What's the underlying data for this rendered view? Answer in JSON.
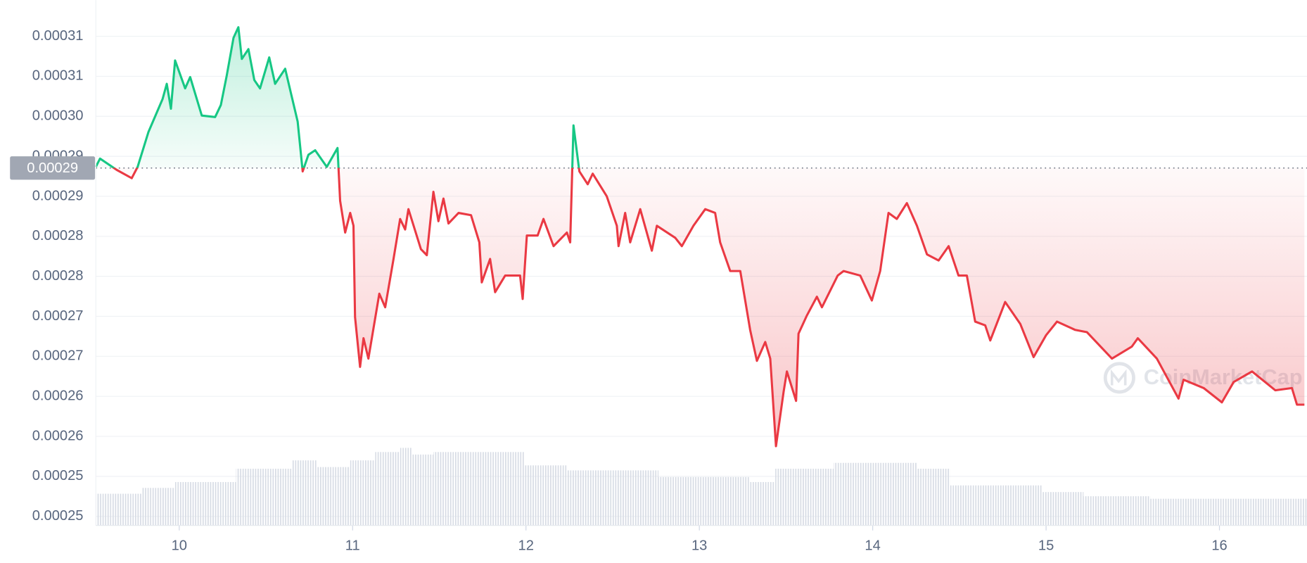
{
  "chart_data": {
    "type": "area-line",
    "x": [
      9.519,
      9.543,
      9.639,
      9.726,
      9.76,
      9.822,
      9.904,
      9.928,
      9.952,
      9.976,
      10.034,
      10.063,
      10.13,
      10.207,
      10.24,
      10.274,
      10.313,
      10.341,
      10.361,
      10.399,
      10.433,
      10.466,
      10.519,
      10.553,
      10.611,
      10.649,
      10.683,
      10.712,
      10.745,
      10.784,
      10.851,
      10.913,
      10.928,
      10.957,
      10.986,
      11.005,
      11.014,
      11.043,
      11.063,
      11.091,
      11.154,
      11.188,
      11.236,
      11.274,
      11.303,
      11.322,
      11.394,
      11.428,
      11.466,
      11.495,
      11.524,
      11.553,
      11.611,
      11.683,
      11.731,
      11.745,
      11.793,
      11.822,
      11.88,
      11.966,
      11.981,
      12.005,
      12.067,
      12.101,
      12.159,
      12.236,
      12.255,
      12.274,
      12.308,
      12.356,
      12.385,
      12.466,
      12.524,
      12.534,
      12.572,
      12.601,
      12.659,
      12.726,
      12.755,
      12.861,
      12.899,
      12.966,
      13.034,
      13.091,
      13.12,
      13.178,
      13.236,
      13.293,
      13.332,
      13.38,
      13.409,
      13.442,
      13.486,
      13.505,
      13.558,
      13.572,
      13.62,
      13.678,
      13.707,
      13.798,
      13.832,
      13.928,
      13.995,
      14.043,
      14.091,
      14.139,
      14.197,
      14.255,
      14.313,
      14.38,
      14.438,
      14.495,
      14.543,
      14.591,
      14.649,
      14.678,
      14.764,
      14.851,
      14.928,
      15.0,
      15.063,
      15.168,
      15.236,
      15.38,
      15.495,
      15.529,
      15.639,
      15.764,
      15.793,
      15.909,
      16.014,
      16.082,
      16.188,
      16.322,
      16.418,
      16.447,
      16.49
    ],
    "values": [
      0.0002933,
      0.0002944,
      0.0002929,
      0.0002918,
      0.0002933,
      0.0002979,
      0.0003023,
      0.0003043,
      0.000301,
      0.0003074,
      0.0003037,
      0.0003052,
      0.0003001,
      0.0002999,
      0.0003015,
      0.0003054,
      0.0003104,
      0.0003118,
      0.0003076,
      0.0003089,
      0.0003048,
      0.0003037,
      0.0003078,
      0.0003043,
      0.0003063,
      0.0003026,
      0.0002993,
      0.0002927,
      0.0002949,
      0.0002955,
      0.0002933,
      0.0002958,
      0.0002888,
      0.0002846,
      0.0002872,
      0.0002855,
      0.0002734,
      0.0002668,
      0.0002706,
      0.0002679,
      0.0002765,
      0.0002747,
      0.0002811,
      0.0002864,
      0.000285,
      0.0002877,
      0.0002824,
      0.0002816,
      0.00029,
      0.0002861,
      0.0002891,
      0.0002858,
      0.0002872,
      0.0002869,
      0.0002833,
      0.000278,
      0.0002811,
      0.0002767,
      0.0002789,
      0.0002789,
      0.0002758,
      0.0002842,
      0.0002842,
      0.0002864,
      0.0002828,
      0.0002846,
      0.0002833,
      0.0002988,
      0.0002927,
      0.000291,
      0.0002924,
      0.0002894,
      0.0002855,
      0.0002828,
      0.0002872,
      0.0002833,
      0.0002877,
      0.0002822,
      0.0002855,
      0.0002839,
      0.0002828,
      0.0002855,
      0.0002877,
      0.0002872,
      0.0002833,
      0.0002795,
      0.0002795,
      0.0002717,
      0.0002676,
      0.0002701,
      0.0002679,
      0.0002563,
      0.0002635,
      0.0002662,
      0.0002623,
      0.0002712,
      0.0002736,
      0.0002761,
      0.0002747,
      0.0002789,
      0.0002795,
      0.0002789,
      0.0002756,
      0.0002795,
      0.0002872,
      0.0002864,
      0.0002885,
      0.0002855,
      0.0002817,
      0.0002809,
      0.0002828,
      0.0002789,
      0.0002789,
      0.0002728,
      0.0002723,
      0.0002703,
      0.0002754,
      0.0002725,
      0.0002681,
      0.000271,
      0.0002728,
      0.0002717,
      0.0002714,
      0.0002679,
      0.0002695,
      0.0002706,
      0.0002679,
      0.0002626,
      0.0002651,
      0.000264,
      0.0002621,
      0.0002648,
      0.0002662,
      0.0002637,
      0.000264,
      0.0002618,
      0.0002618
    ],
    "up_color": "#16c784",
    "down_color": "#ea3943",
    "reference": 0.00029315,
    "reference_label": "0.00029",
    "volume": {
      "x": [
        9.519,
        9.784,
        9.976,
        10.327,
        10.649,
        10.793,
        10.986,
        11.13,
        11.274,
        11.346,
        11.466,
        11.995,
        12.236,
        12.764,
        13.293,
        13.438,
        13.774,
        14.255,
        14.447,
        14.976,
        15.216,
        15.601
      ],
      "values": [
        38,
        45,
        52,
        68,
        78,
        70,
        78,
        88,
        93,
        85,
        88,
        72,
        66,
        58,
        52,
        68,
        75,
        68,
        48,
        40,
        35,
        32
      ],
      "color": "#d6dbe4"
    },
    "xlim": [
      9.519,
      16.505
    ],
    "xticks": [
      10,
      11,
      12,
      13,
      14,
      15,
      16
    ],
    "ylim": [
      0.0002458,
      0.0003154
    ],
    "yticks": [
      {
        "value": 0.000247,
        "label": "0.00025"
      },
      {
        "value": 0.0002523,
        "label": "0.00025"
      },
      {
        "value": 0.0002576,
        "label": "0.00026"
      },
      {
        "value": 0.0002629,
        "label": "0.00026"
      },
      {
        "value": 0.0002682,
        "label": "0.00027"
      },
      {
        "value": 0.0002735,
        "label": "0.00027"
      },
      {
        "value": 0.0002788,
        "label": "0.00028"
      },
      {
        "value": 0.0002841,
        "label": "0.00028"
      },
      {
        "value": 0.0002894,
        "label": "0.00029"
      },
      {
        "value": 0.0002947,
        "label": "0.00029"
      },
      {
        "value": 0.0003,
        "label": "0.00030"
      },
      {
        "value": 0.0003053,
        "label": "0.00031"
      },
      {
        "value": 0.0003106,
        "label": "0.00031"
      }
    ],
    "grid": true,
    "watermark": "CoinMarketCap"
  }
}
